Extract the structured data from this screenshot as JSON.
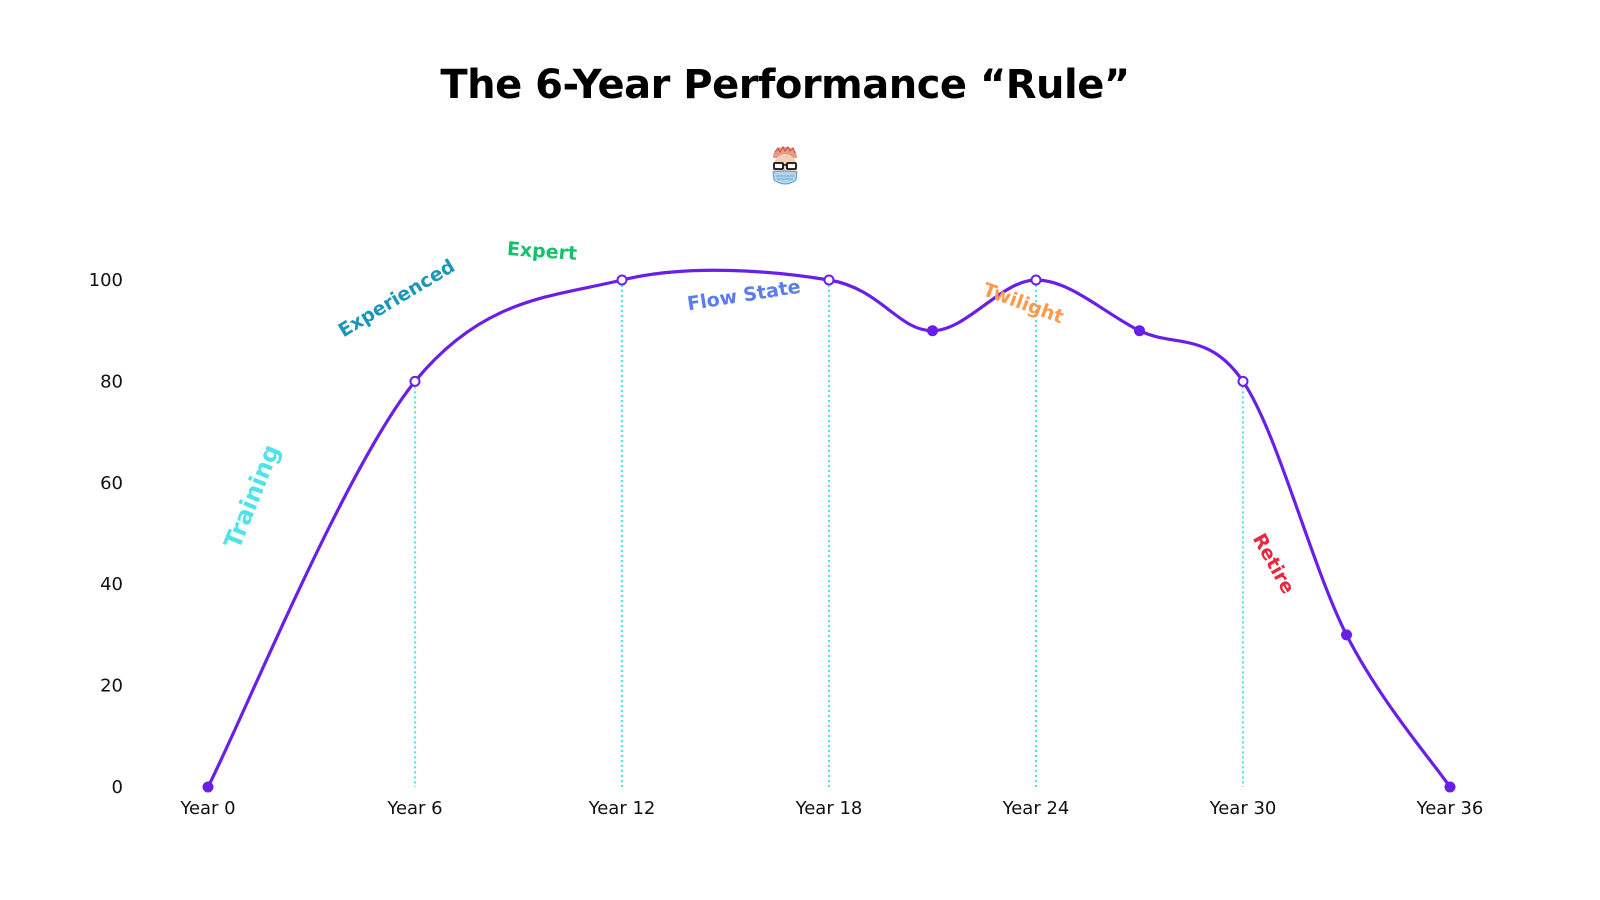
{
  "title": "The 6-Year Performance “Rule”",
  "colors": {
    "line": "#6a1fe8",
    "guide": "#4fe3e8",
    "marker": "#6a1fe8"
  },
  "chart_data": {
    "type": "line",
    "title": "The 6-Year Performance “Rule”",
    "xlabel": "",
    "ylabel": "",
    "xlim": [
      0,
      36
    ],
    "ylim": [
      0,
      100
    ],
    "grid": false,
    "y_ticks": [
      0,
      20,
      40,
      60,
      80,
      100
    ],
    "x_ticks": [
      {
        "value": 0,
        "label": "Year 0"
      },
      {
        "value": 6,
        "label": "Year 6"
      },
      {
        "value": 12,
        "label": "Year 12"
      },
      {
        "value": 18,
        "label": "Year 18"
      },
      {
        "value": 24,
        "label": "Year 24"
      },
      {
        "value": 30,
        "label": "Year 30"
      },
      {
        "value": 36,
        "label": "Year 36"
      }
    ],
    "series": [
      {
        "x": [
          0,
          6,
          12,
          18,
          24,
          30,
          36
        ],
        "y": [
          0,
          80,
          100,
          100,
          100,
          80,
          0
        ],
        "extra_points": [
          [
            21,
            90
          ],
          [
            27,
            90
          ],
          [
            33,
            30
          ]
        ],
        "all_points": [
          [
            0,
            0
          ],
          [
            6,
            80
          ],
          [
            12,
            100
          ],
          [
            18,
            100
          ],
          [
            21,
            90
          ],
          [
            24,
            100
          ],
          [
            27,
            90
          ],
          [
            30,
            80
          ],
          [
            33,
            30
          ],
          [
            36,
            0
          ]
        ]
      }
    ],
    "guide_lines": [
      6,
      12,
      18,
      24,
      30
    ],
    "annotations": [
      {
        "text": "Training",
        "color": "#4fe3e8",
        "size": 24
      },
      {
        "text": "Experienced",
        "color": "#1a96b8",
        "size": 19
      },
      {
        "text": "Expert",
        "color": "#14c26b",
        "size": 19
      },
      {
        "text": "Flow State",
        "color": "#5a7cf0",
        "size": 19
      },
      {
        "text": "Twilight",
        "color": "#ff9a4d",
        "size": 19
      },
      {
        "text": "Retire",
        "color": "#e8283c",
        "size": 19
      }
    ]
  }
}
